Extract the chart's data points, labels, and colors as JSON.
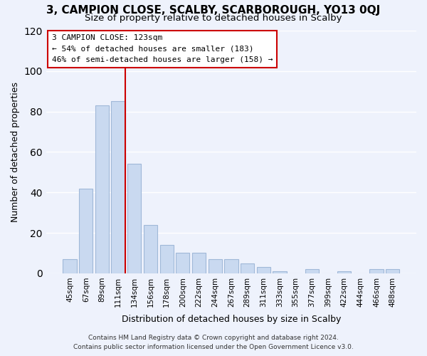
{
  "title": "3, CAMPION CLOSE, SCALBY, SCARBOROUGH, YO13 0QJ",
  "subtitle": "Size of property relative to detached houses in Scalby",
  "xlabel": "Distribution of detached houses by size in Scalby",
  "ylabel": "Number of detached properties",
  "bar_labels": [
    "45sqm",
    "67sqm",
    "89sqm",
    "111sqm",
    "134sqm",
    "156sqm",
    "178sqm",
    "200sqm",
    "222sqm",
    "244sqm",
    "267sqm",
    "289sqm",
    "311sqm",
    "333sqm",
    "355sqm",
    "377sqm",
    "399sqm",
    "422sqm",
    "444sqm",
    "466sqm",
    "488sqm"
  ],
  "bar_values": [
    7,
    42,
    83,
    85,
    54,
    24,
    14,
    10,
    10,
    7,
    7,
    5,
    3,
    1,
    0,
    2,
    0,
    1,
    0,
    2,
    2
  ],
  "bar_color": "#c9d9f0",
  "bar_edge_color": "#a0b8d8",
  "reference_line_label": "3 CAMPION CLOSE: 123sqm",
  "annotation_line1": "← 54% of detached houses are smaller (183)",
  "annotation_line2": "46% of semi-detached houses are larger (158) →",
  "box_color": "#ffffff",
  "box_edge_color": "#cc0000",
  "ref_line_color": "#cc0000",
  "ref_line_x": 3.425,
  "ylim": [
    0,
    120
  ],
  "yticks": [
    0,
    20,
    40,
    60,
    80,
    100,
    120
  ],
  "footer_line1": "Contains HM Land Registry data © Crown copyright and database right 2024.",
  "footer_line2": "Contains public sector information licensed under the Open Government Licence v3.0.",
  "background_color": "#eef2fc",
  "grid_color": "#ffffff"
}
